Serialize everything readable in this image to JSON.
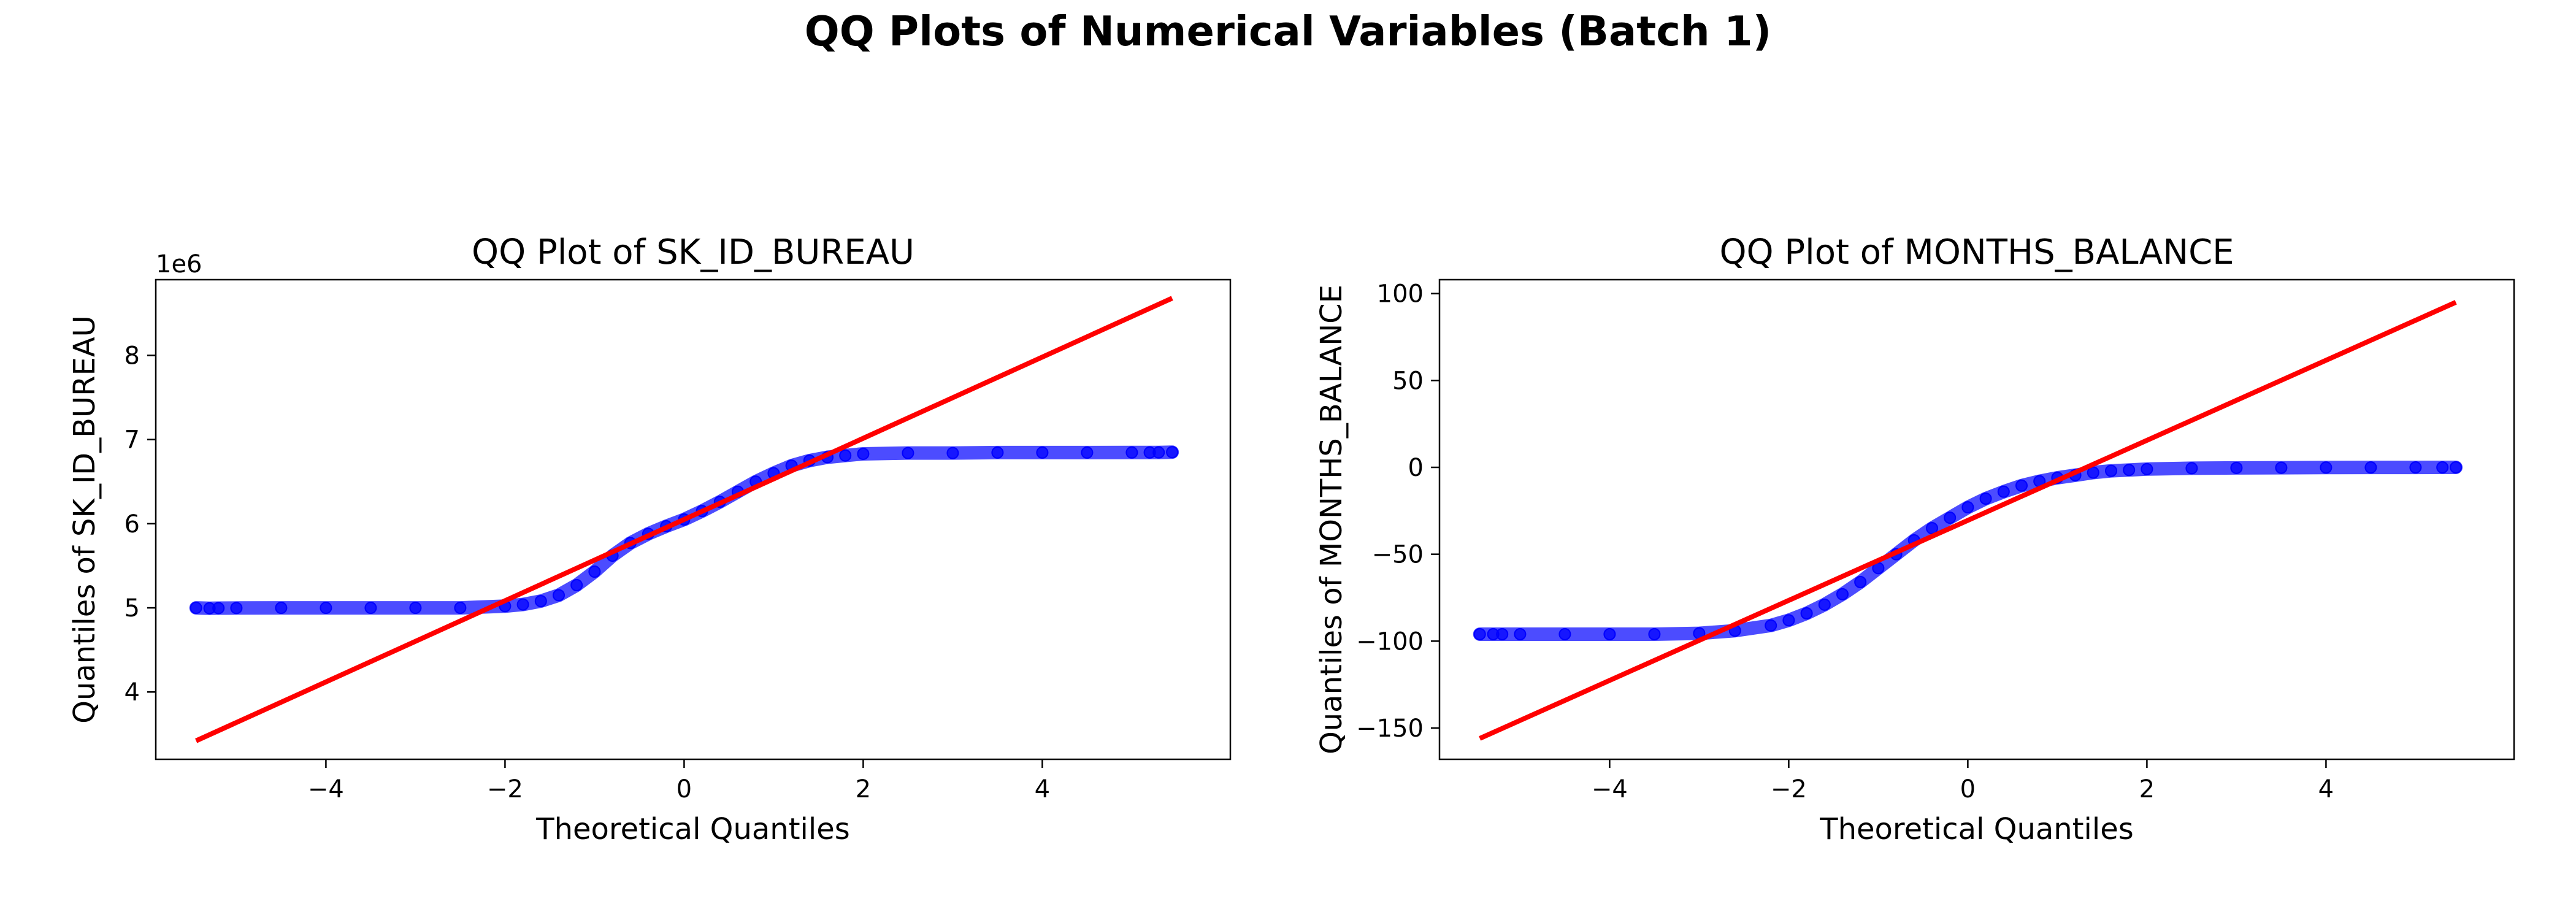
{
  "figure": {
    "suptitle": "QQ Plots of Numerical Variables (Batch 1)"
  },
  "colors": {
    "points": "#0000ff",
    "reference_line": "#ff0000",
    "axes": "#000000"
  },
  "chart_data": [
    {
      "type": "scatter",
      "title": "QQ Plot of SK_ID_BUREAU",
      "xlabel": "Theoretical Quantiles",
      "ylabel": "Quantiles of SK_ID_BUREAU",
      "offset_text": "1e6",
      "xlim": [
        -5.9,
        6.1
      ],
      "ylim": [
        3.2,
        8.9
      ],
      "xticks": [
        -4,
        -2,
        0,
        2,
        4
      ],
      "yticks": [
        4,
        5,
        6,
        7,
        8
      ],
      "xtick_labels": [
        "−4",
        "−2",
        "0",
        "2",
        "4"
      ],
      "ytick_labels": [
        "4",
        "5",
        "6",
        "7",
        "8"
      ],
      "grid": false,
      "series": [
        {
          "kind": "points",
          "x": [
            -5.45,
            -5.3,
            -5.2,
            -5.0,
            -4.5,
            -4.0,
            -3.5,
            -3.0,
            -2.5,
            -2.0,
            -1.8,
            -1.6,
            -1.4,
            -1.2,
            -1.0,
            -0.8,
            -0.6,
            -0.4,
            -0.2,
            0.0,
            0.2,
            0.4,
            0.6,
            0.8,
            1.0,
            1.2,
            1.4,
            1.6,
            1.8,
            2.0,
            2.5,
            3.0,
            3.5,
            4.0,
            4.5,
            5.0,
            5.2,
            5.3,
            5.45
          ],
          "y": [
            5.0,
            4.995,
            4.997,
            4.998,
            5.0,
            5.0,
            5.0,
            5.0,
            5.0,
            5.02,
            5.04,
            5.08,
            5.15,
            5.27,
            5.43,
            5.62,
            5.77,
            5.88,
            5.97,
            6.05,
            6.15,
            6.26,
            6.38,
            6.5,
            6.6,
            6.69,
            6.75,
            6.79,
            6.81,
            6.83,
            6.84,
            6.84,
            6.845,
            6.845,
            6.845,
            6.846,
            6.846,
            6.847,
            6.85
          ]
        },
        {
          "kind": "line",
          "x": [
            -5.45,
            5.45
          ],
          "y": [
            3.42,
            8.68
          ]
        }
      ]
    },
    {
      "type": "scatter",
      "title": "QQ Plot of MONTHS_BALANCE",
      "xlabel": "Theoretical Quantiles",
      "ylabel": "Quantiles of MONTHS_BALANCE",
      "offset_text": "",
      "xlim": [
        -5.9,
        6.1
      ],
      "ylim": [
        -168,
        108
      ],
      "xticks": [
        -4,
        -2,
        0,
        2,
        4
      ],
      "yticks": [
        -150,
        -100,
        -50,
        0,
        50,
        100
      ],
      "xtick_labels": [
        "−4",
        "−2",
        "0",
        "2",
        "4"
      ],
      "ytick_labels": [
        "−150",
        "−100",
        "−50",
        "0",
        "50",
        "100"
      ],
      "grid": false,
      "series": [
        {
          "kind": "points",
          "x": [
            -5.45,
            -5.3,
            -5.2,
            -5.0,
            -4.5,
            -4.0,
            -3.5,
            -3.0,
            -2.6,
            -2.2,
            -2.0,
            -1.8,
            -1.6,
            -1.4,
            -1.2,
            -1.0,
            -0.8,
            -0.6,
            -0.4,
            -0.2,
            0.0,
            0.2,
            0.4,
            0.6,
            0.8,
            1.0,
            1.2,
            1.4,
            1.6,
            1.8,
            2.0,
            2.5,
            3.0,
            3.5,
            4.0,
            4.5,
            5.0,
            5.3,
            5.45
          ],
          "y": [
            -96,
            -96,
            -96,
            -96,
            -96,
            -96,
            -96,
            -95.5,
            -94,
            -91,
            -88,
            -84,
            -79,
            -73,
            -66,
            -58,
            -50,
            -42,
            -35,
            -29,
            -23,
            -18,
            -14,
            -10.5,
            -8,
            -6,
            -4.5,
            -3,
            -2,
            -1.5,
            -1,
            -0.5,
            -0.3,
            -0.2,
            -0.1,
            -0.05,
            -0.02,
            0,
            0
          ]
        },
        {
          "kind": "line",
          "x": [
            -5.45,
            5.45
          ],
          "y": [
            -156,
            95
          ]
        }
      ]
    }
  ]
}
